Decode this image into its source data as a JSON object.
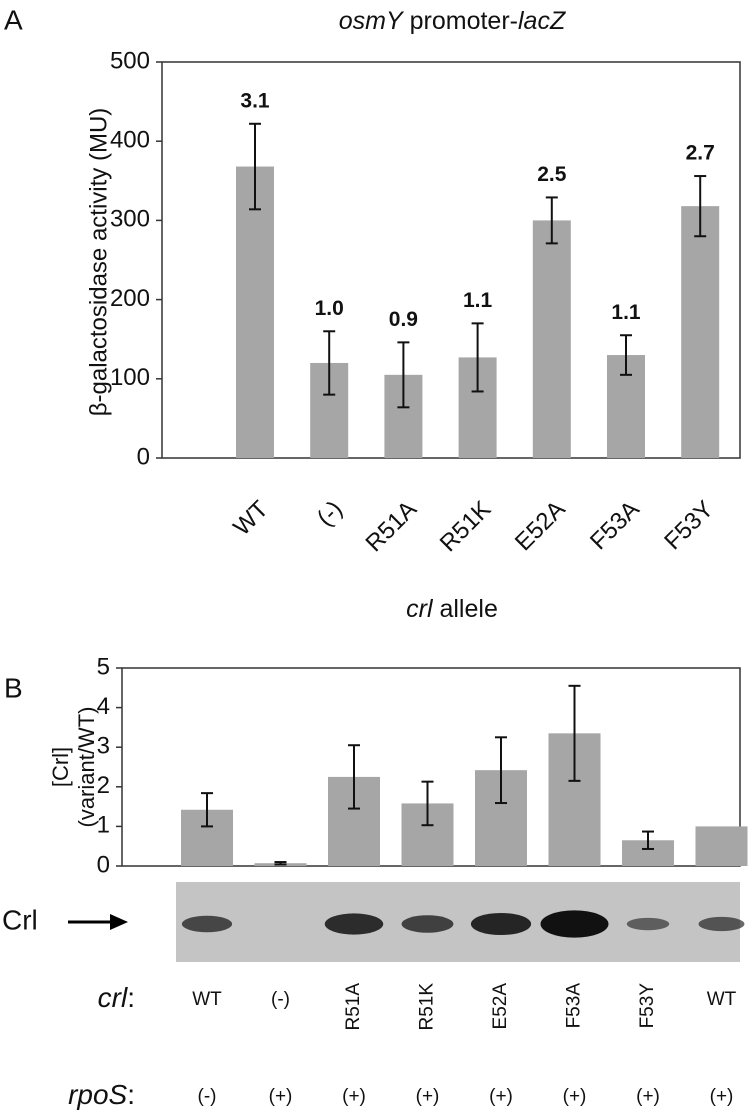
{
  "chart_data": [
    {
      "type": "bar",
      "panel": "A",
      "title_parts": [
        "osmY",
        " promoter-",
        "lacZ"
      ],
      "y_label": "β-galactosidase activity (MU)",
      "x_label_parts": [
        "crl",
        " allele"
      ],
      "categories": [
        "WT",
        "(-)",
        "R51A",
        "R51K",
        "E52A",
        "F53A",
        "F53Y"
      ],
      "values": [
        368,
        120,
        105,
        127,
        300,
        130,
        318
      ],
      "errors": [
        54,
        40,
        41,
        43,
        29,
        25,
        38
      ],
      "annotations": [
        "3.1",
        "1.0",
        "0.9",
        "1.1",
        "2.5",
        "1.1",
        "2.7"
      ],
      "color": "#a6a6a6",
      "ylim": [
        0,
        500
      ],
      "yticks": [
        0,
        100,
        200,
        300,
        400,
        500
      ]
    },
    {
      "type": "bar",
      "panel": "B",
      "y_label_lines": [
        "[Crl]",
        "(variant/WT)"
      ],
      "blot_label": "Crl",
      "row_labels": [
        "crl",
        "rpoS"
      ],
      "row_separator": ":",
      "categories": [
        "WT",
        "(-)",
        "R51A",
        "R51K",
        "E52A",
        "F53A",
        "F53Y",
        "WT"
      ],
      "rpoS": [
        "(-)",
        "(+)",
        "(+)",
        "(+)",
        "(+)",
        "(+)",
        "(+)",
        "(+)"
      ],
      "values": [
        1.42,
        0.07,
        2.25,
        1.58,
        2.42,
        3.35,
        0.65,
        1.0
      ],
      "errors": [
        0.42,
        0.03,
        0.8,
        0.55,
        0.83,
        1.2,
        0.22,
        null
      ],
      "color": "#a6a6a6",
      "ylim": [
        0,
        5
      ],
      "yticks": [
        0,
        1,
        2,
        3,
        4,
        5
      ]
    }
  ]
}
